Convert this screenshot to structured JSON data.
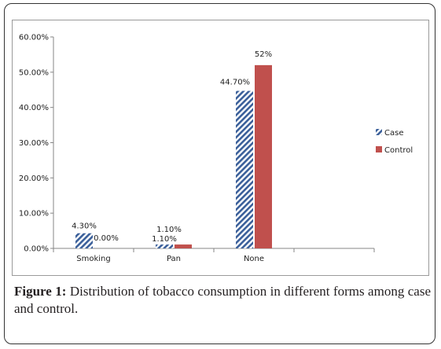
{
  "chart_data": {
    "type": "bar",
    "categories": [
      "Smoking",
      "Pan",
      "None",
      ""
    ],
    "series": [
      {
        "name": "Case",
        "values": [
          4.3,
          1.1,
          44.7,
          null
        ],
        "labels": [
          "4.30%",
          "1.10%",
          "44.70%",
          ""
        ],
        "pattern": "diagonal-hatch",
        "color": "#3a5f9a"
      },
      {
        "name": "Control",
        "values": [
          0.0,
          1.1,
          52.0,
          null
        ],
        "labels": [
          "0.00%",
          "1.10%",
          "52%",
          ""
        ],
        "color": "#c0504d"
      }
    ],
    "yticks": [
      "0.00%",
      "10.00%",
      "20.00%",
      "30.00%",
      "40.00%",
      "50.00%",
      "60.00%"
    ],
    "ylim": [
      0,
      60
    ],
    "legend": "right",
    "grid": false
  },
  "caption": {
    "label": "Figure 1:",
    "text": " Distribution of tobacco consumption in different forms among case and control."
  }
}
